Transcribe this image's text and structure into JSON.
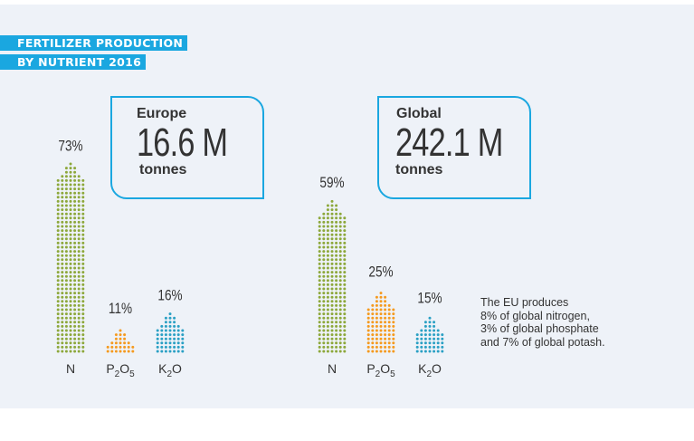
{
  "title": {
    "line1": "FERTILIZER PRODUCTION",
    "line2": "BY NUTRIENT 2016"
  },
  "chart_data": [
    {
      "type": "bar",
      "subtitle": "Europe",
      "total_value": "16.6 M",
      "total_unit": "tonnes",
      "categories": [
        "N",
        "P2O5",
        "K2O"
      ],
      "values": [
        73,
        11,
        16
      ],
      "value_labels": [
        "73%",
        "11%",
        "16%"
      ],
      "colors": [
        "#8da83b",
        "#f59a1f",
        "#2aa0c4"
      ]
    },
    {
      "type": "bar",
      "subtitle": "Global",
      "total_value": "242.1 M",
      "total_unit": "tonnes",
      "categories": [
        "N",
        "P2O5",
        "K2O"
      ],
      "values": [
        59,
        25,
        15
      ],
      "value_labels": [
        "59%",
        "25%",
        "15%"
      ],
      "colors": [
        "#8da83b",
        "#f59a1f",
        "#2aa0c4"
      ]
    }
  ],
  "note": "The EU produces\n8% of global nitrogen,\n3% of global phosphate\nand 7% of global potash.",
  "colors": {
    "accent": "#1aa7e0",
    "background": "#eef2f8"
  }
}
